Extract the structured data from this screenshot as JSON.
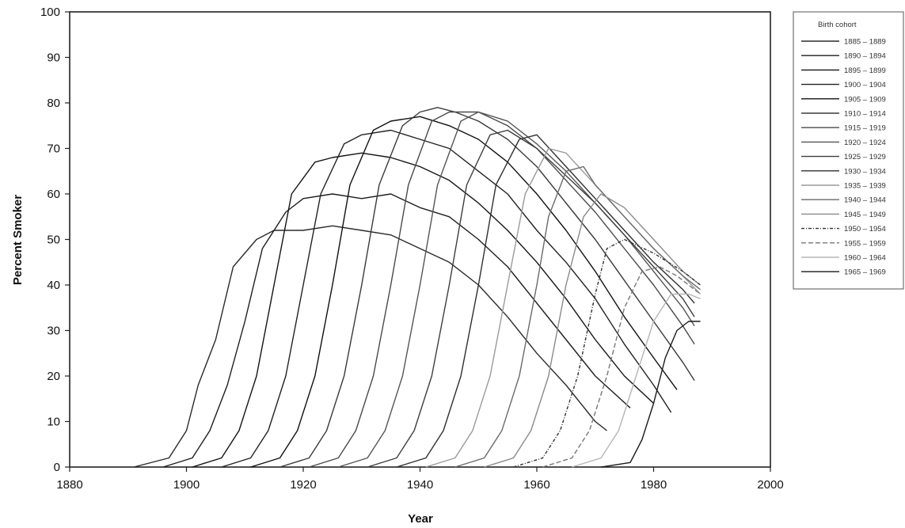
{
  "chart_data": {
    "type": "line",
    "title": "",
    "xlabel": "Year",
    "ylabel": "Percent Smoker",
    "xlim": [
      1880,
      2000
    ],
    "ylim": [
      0,
      100
    ],
    "xticks": [
      1880,
      1900,
      1920,
      1940,
      1960,
      1980,
      2000
    ],
    "yticks": [
      0,
      10,
      20,
      30,
      40,
      50,
      60,
      70,
      80,
      90,
      100
    ],
    "grid": false,
    "legend": {
      "title": "Birth cohort",
      "placement": "right"
    },
    "series": [
      {
        "name": "1885 – 1889",
        "color": "#2a2a2a",
        "dash": "",
        "x": [
          1891,
          1897,
          1900,
          1902,
          1905,
          1908,
          1912,
          1915,
          1920,
          1925,
          1930,
          1935,
          1940,
          1945,
          1950,
          1955,
          1960,
          1965,
          1970,
          1972
        ],
        "y": [
          0,
          2,
          8,
          18,
          28,
          44,
          50,
          52,
          52,
          53,
          52,
          51,
          48,
          45,
          40,
          33,
          25,
          18,
          10,
          8
        ]
      },
      {
        "name": "1890 – 1894",
        "color": "#1e1e1e",
        "dash": "",
        "x": [
          1896,
          1901,
          1904,
          1907,
          1910,
          1913,
          1917,
          1920,
          1925,
          1930,
          1935,
          1940,
          1945,
          1950,
          1955,
          1960,
          1965,
          1970,
          1976
        ],
        "y": [
          0,
          2,
          8,
          18,
          32,
          48,
          56,
          59,
          60,
          59,
          60,
          57,
          55,
          50,
          44,
          36,
          28,
          20,
          13
        ]
      },
      {
        "name": "1895 – 1899",
        "color": "#141414",
        "dash": "",
        "x": [
          1901,
          1906,
          1909,
          1912,
          1915,
          1918,
          1922,
          1925,
          1930,
          1935,
          1940,
          1945,
          1950,
          1955,
          1960,
          1965,
          1970,
          1975,
          1980
        ],
        "y": [
          0,
          2,
          8,
          20,
          40,
          60,
          67,
          68,
          69,
          68,
          66,
          63,
          58,
          52,
          45,
          37,
          28,
          20,
          14
        ]
      },
      {
        "name": "1900 – 1904",
        "color": "#222222",
        "dash": "",
        "x": [
          1906,
          1911,
          1914,
          1917,
          1920,
          1923,
          1927,
          1930,
          1935,
          1940,
          1945,
          1950,
          1955,
          1960,
          1965,
          1970,
          1975,
          1980,
          1983
        ],
        "y": [
          0,
          2,
          8,
          20,
          40,
          60,
          71,
          73,
          74,
          72,
          70,
          65,
          60,
          52,
          45,
          37,
          27,
          18,
          12
        ]
      },
      {
        "name": "1905 – 1909",
        "color": "#111111",
        "dash": "",
        "x": [
          1911,
          1916,
          1919,
          1922,
          1925,
          1928,
          1932,
          1935,
          1940,
          1945,
          1950,
          1955,
          1960,
          1965,
          1970,
          1975,
          1980,
          1984
        ],
        "y": [
          0,
          2,
          8,
          20,
          40,
          62,
          74,
          76,
          77,
          75,
          72,
          67,
          60,
          52,
          43,
          33,
          24,
          17
        ]
      },
      {
        "name": "1910 – 1914",
        "color": "#3a3a3a",
        "dash": "",
        "x": [
          1916,
          1921,
          1924,
          1927,
          1930,
          1933,
          1937,
          1940,
          1943,
          1946,
          1950,
          1955,
          1960,
          1965,
          1970,
          1975,
          1980,
          1985,
          1987
        ],
        "y": [
          0,
          2,
          8,
          20,
          40,
          62,
          75,
          78,
          79,
          78,
          76,
          72,
          66,
          58,
          50,
          41,
          32,
          23,
          19
        ]
      },
      {
        "name": "1915 – 1919",
        "color": "#4a4a4a",
        "dash": "",
        "x": [
          1921,
          1926,
          1929,
          1932,
          1935,
          1938,
          1942,
          1945,
          1948,
          1950,
          1955,
          1960,
          1965,
          1970,
          1975,
          1980,
          1985,
          1987
        ],
        "y": [
          0,
          2,
          8,
          20,
          40,
          62,
          76,
          78,
          78,
          78,
          75,
          70,
          63,
          56,
          48,
          40,
          31,
          27
        ]
      },
      {
        "name": "1920 – 1924",
        "color": "#555555",
        "dash": "",
        "x": [
          1926,
          1931,
          1934,
          1937,
          1940,
          1943,
          1947,
          1950,
          1955,
          1960,
          1965,
          1970,
          1975,
          1980,
          1985,
          1987
        ],
        "y": [
          0,
          2,
          8,
          20,
          40,
          62,
          76,
          78,
          76,
          71,
          65,
          58,
          51,
          43,
          35,
          31
        ]
      },
      {
        "name": "1925 – 1929",
        "color": "#3e3e3e",
        "dash": "",
        "x": [
          1931,
          1936,
          1939,
          1942,
          1945,
          1948,
          1952,
          1955,
          1960,
          1965,
          1970,
          1975,
          1980,
          1985,
          1987
        ],
        "y": [
          0,
          2,
          8,
          20,
          40,
          62,
          73,
          74,
          70,
          64,
          58,
          51,
          44,
          37,
          33
        ]
      },
      {
        "name": "1930 – 1934",
        "color": "#2f2f2f",
        "dash": "",
        "x": [
          1936,
          1941,
          1944,
          1947,
          1950,
          1953,
          1957,
          1960,
          1965,
          1970,
          1975,
          1980,
          1985,
          1987
        ],
        "y": [
          0,
          2,
          8,
          20,
          40,
          62,
          72,
          73,
          66,
          59,
          52,
          45,
          39,
          36
        ]
      },
      {
        "name": "1935 – 1939",
        "color": "#9a9a9a",
        "dash": "",
        "x": [
          1941,
          1946,
          1949,
          1952,
          1955,
          1958,
          1962,
          1965,
          1970,
          1975,
          1980,
          1985,
          1988
        ],
        "y": [
          0,
          2,
          8,
          20,
          40,
          60,
          70,
          69,
          62,
          55,
          48,
          42,
          38
        ]
      },
      {
        "name": "1940 – 1944",
        "color": "#6a6a6a",
        "dash": "",
        "x": [
          1946,
          1951,
          1954,
          1957,
          1960,
          1962,
          1965,
          1968,
          1970,
          1975,
          1980,
          1985,
          1988
        ],
        "y": [
          0,
          2,
          8,
          20,
          40,
          55,
          65,
          66,
          62,
          55,
          48,
          42,
          39
        ]
      },
      {
        "name": "1945 – 1949",
        "color": "#8a8a8a",
        "dash": "",
        "x": [
          1951,
          1956,
          1959,
          1962,
          1965,
          1968,
          1971,
          1975,
          1980,
          1985,
          1988
        ],
        "y": [
          0,
          2,
          8,
          20,
          40,
          55,
          60,
          57,
          50,
          43,
          40
        ]
      },
      {
        "name": "1950 – 1954",
        "color": "#333333",
        "dash": "4,2,1,2",
        "x": [
          1956,
          1961,
          1964,
          1967,
          1970,
          1972,
          1975,
          1980,
          1985,
          1988
        ],
        "y": [
          0,
          2,
          8,
          20,
          38,
          48,
          50,
          47,
          43,
          40
        ]
      },
      {
        "name": "1955 – 1959",
        "color": "#777777",
        "dash": "6,3",
        "x": [
          1961,
          1966,
          1969,
          1972,
          1975,
          1978,
          1981,
          1984,
          1988
        ],
        "y": [
          0,
          2,
          8,
          20,
          35,
          43,
          44,
          42,
          38
        ]
      },
      {
        "name": "1960 – 1964",
        "color": "#b5b5b5",
        "dash": "",
        "x": [
          1966,
          1971,
          1974,
          1977,
          1980,
          1983,
          1986,
          1988
        ],
        "y": [
          0,
          2,
          8,
          20,
          32,
          38,
          38,
          37
        ]
      },
      {
        "name": "1965 – 1969",
        "color": "#1a1a1a",
        "dash": "",
        "x": [
          1971,
          1976,
          1978,
          1980,
          1982,
          1984,
          1986,
          1988
        ],
        "y": [
          0,
          1,
          6,
          14,
          24,
          30,
          32,
          32
        ]
      }
    ]
  }
}
